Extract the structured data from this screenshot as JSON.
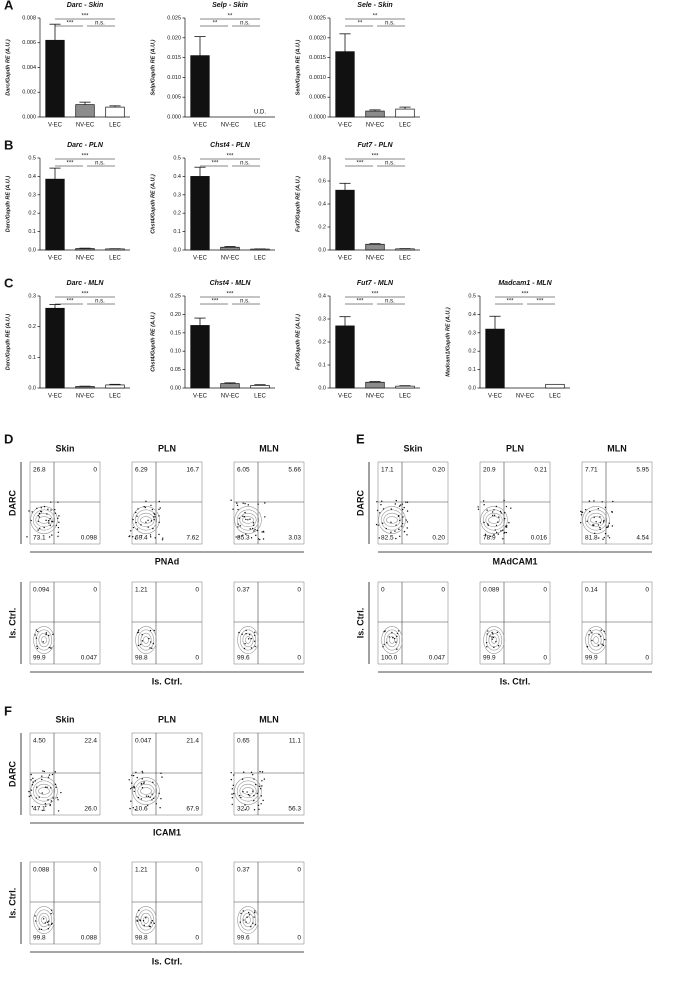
{
  "panels": [
    "A",
    "B",
    "C",
    "D",
    "E",
    "F"
  ],
  "chart_data": [
    {
      "type": "bar",
      "title": "Darc - Skin",
      "ylabel": "Darc/Gapdh RE (A.U.)",
      "categories": [
        "V-EC",
        "NV-EC",
        "LEC"
      ],
      "values": [
        0.0062,
        0.001,
        0.0008
      ],
      "errors": [
        0.0013,
        0.0002,
        0.0001
      ],
      "colors": [
        "#111111",
        "#8c8c8c",
        "#ffffff"
      ],
      "ylim": [
        0,
        0.008
      ],
      "yticks": [
        {
          "value": 0,
          "label": "0.000"
        },
        {
          "value": 0.002,
          "label": "0.002"
        },
        {
          "value": 0.004,
          "label": "0.004"
        },
        {
          "value": 0.006,
          "label": "0.006"
        },
        {
          "value": 0.008,
          "label": "0.008"
        }
      ],
      "significance": [
        "***",
        "n.s.",
        "***"
      ]
    },
    {
      "type": "bar",
      "title": "Selp - Skin",
      "ylabel": "Selp/Gapdh RE (A.U.)",
      "categories": [
        "V-EC",
        "NV-EC",
        "LEC"
      ],
      "values": [
        0.0155,
        null,
        null
      ],
      "errors": [
        0.0048,
        null,
        null
      ],
      "colors": [
        "#111111",
        "#8c8c8c",
        "#ffffff"
      ],
      "ylim": [
        0,
        0.025
      ],
      "yticks": [
        {
          "value": 0,
          "label": "0.000"
        },
        {
          "value": 0.005,
          "label": "0.005"
        },
        {
          "value": 0.01,
          "label": "0.010"
        },
        {
          "value": 0.015,
          "label": "0.015"
        },
        {
          "value": 0.02,
          "label": "0.020"
        },
        {
          "value": 0.025,
          "label": "0.025"
        }
      ],
      "significance": [
        "**",
        "n.s.",
        "**"
      ],
      "annotation": {
        "category": "LEC",
        "text": "U.D."
      }
    },
    {
      "type": "bar",
      "title": "Sele - Skin",
      "ylabel": "Sele/Gapdh RE (A.U.)",
      "categories": [
        "V-EC",
        "NV-EC",
        "LEC"
      ],
      "values": [
        0.00165,
        0.00015,
        0.0002
      ],
      "errors": [
        0.00045,
        3e-05,
        5e-05
      ],
      "colors": [
        "#111111",
        "#8c8c8c",
        "#ffffff"
      ],
      "ylim": [
        0,
        0.0025
      ],
      "yticks": [
        {
          "value": 0,
          "label": "0.0000"
        },
        {
          "value": 0.0005,
          "label": "0.0005"
        },
        {
          "value": 0.001,
          "label": "0.0010"
        },
        {
          "value": 0.0015,
          "label": "0.0015"
        },
        {
          "value": 0.002,
          "label": "0.0020"
        },
        {
          "value": 0.0025,
          "label": "0.0025"
        }
      ],
      "significance": [
        "**",
        "n.s.",
        "**"
      ]
    },
    {
      "type": "bar",
      "title": "Darc - PLN",
      "ylabel": "Darc/Gapdh RE (A.U.)",
      "categories": [
        "V-EC",
        "NV-EC",
        "LEC"
      ],
      "values": [
        0.385,
        0.008,
        0.006
      ],
      "errors": [
        0.06,
        0.002,
        0.001
      ],
      "colors": [
        "#111111",
        "#8c8c8c",
        "#ffffff"
      ],
      "ylim": [
        0,
        0.5
      ],
      "yticks": [
        {
          "value": 0,
          "label": "0.0"
        },
        0.1,
        0.2,
        0.3,
        0.4,
        0.5
      ],
      "significance": [
        "***",
        "n.s.",
        "***"
      ]
    },
    {
      "type": "bar",
      "title": "Chst4 - PLN",
      "ylabel": "Chst4/Gapdh RE (A.U.)",
      "categories": [
        "V-EC",
        "NV-EC",
        "LEC"
      ],
      "values": [
        0.4,
        0.015,
        0.005
      ],
      "errors": [
        0.05,
        0.004,
        0.001
      ],
      "colors": [
        "#111111",
        "#8c8c8c",
        "#ffffff"
      ],
      "ylim": [
        0,
        0.5
      ],
      "yticks": [
        {
          "value": 0,
          "label": "0.0"
        },
        0.1,
        0.2,
        0.3,
        0.4,
        0.5
      ],
      "significance": [
        "***",
        "n.s.",
        "***"
      ]
    },
    {
      "type": "bar",
      "title": "Fut7 - PLN",
      "ylabel": "Fut7/Gapdh RE (A.U.)",
      "categories": [
        "V-EC",
        "NV-EC",
        "LEC"
      ],
      "values": [
        0.52,
        0.05,
        0.01
      ],
      "errors": [
        0.06,
        0.005,
        0.002
      ],
      "colors": [
        "#111111",
        "#8c8c8c",
        "#ffffff"
      ],
      "ylim": [
        0,
        0.8
      ],
      "yticks": [
        {
          "value": 0,
          "label": "0.0"
        },
        0.2,
        0.4,
        0.6,
        0.8
      ],
      "significance": [
        "***",
        "n.s.",
        "***"
      ]
    },
    {
      "type": "bar",
      "title": "Darc - MLN",
      "ylabel": "Darc/Gapdh RE (A.U.)",
      "categories": [
        "V-EC",
        "NV-EC",
        "LEC"
      ],
      "values": [
        0.26,
        0.005,
        0.01
      ],
      "errors": [
        0.012,
        0.001,
        0.002
      ],
      "colors": [
        "#111111",
        "#8c8c8c",
        "#ffffff"
      ],
      "ylim": [
        0,
        0.3
      ],
      "yticks": [
        {
          "value": 0,
          "label": "0.0"
        },
        0.1,
        0.2,
        0.3
      ],
      "significance": [
        "***",
        "n.s.",
        "***"
      ]
    },
    {
      "type": "bar",
      "title": "Chst4 - MLN",
      "ylabel": "Chst4/Gapdh RE (A.U.)",
      "categories": [
        "V-EC",
        "NV-EC",
        "LEC"
      ],
      "values": [
        0.17,
        0.012,
        0.007
      ],
      "errors": [
        0.02,
        0.002,
        0.002
      ],
      "colors": [
        "#111111",
        "#8c8c8c",
        "#ffffff"
      ],
      "ylim": [
        0,
        0.25
      ],
      "yticks": [
        {
          "value": 0,
          "label": "0.00"
        },
        0.05,
        {
          "value": 0.1,
          "label": "0.10"
        },
        0.15,
        {
          "value": 0.2,
          "label": "0.20"
        },
        0.25
      ],
      "significance": [
        "***",
        "n.s.",
        "***"
      ]
    },
    {
      "type": "bar",
      "title": "Fut7 - MLN",
      "ylabel": "Fut7/Gapdh RE (A.U.)",
      "categories": [
        "V-EC",
        "NV-EC",
        "LEC"
      ],
      "values": [
        0.27,
        0.025,
        0.008
      ],
      "errors": [
        0.04,
        0.003,
        0.002
      ],
      "colors": [
        "#111111",
        "#8c8c8c",
        "#ffffff"
      ],
      "ylim": [
        0,
        0.4
      ],
      "yticks": [
        {
          "value": 0,
          "label": "0.0"
        },
        0.1,
        0.2,
        0.3,
        0.4
      ],
      "significance": [
        "***",
        "n.s.",
        "***"
      ]
    },
    {
      "type": "bar",
      "title": "Madcam1 - MLN",
      "ylabel": "Madcam1/Gapdh RE (A.U.)",
      "categories": [
        "V-EC",
        "NV-EC",
        "LEC"
      ],
      "values": [
        0.32,
        null,
        0.02
      ],
      "errors": [
        0.07,
        null,
        null
      ],
      "colors": [
        "#111111",
        "#8c8c8c",
        "#ffffff"
      ],
      "ylim": [
        0,
        0.5
      ],
      "yticks": [
        {
          "value": 0,
          "label": "0.0"
        },
        0.1,
        0.2,
        0.3,
        0.4,
        0.5
      ],
      "significance": [
        "***",
        "***",
        "***"
      ]
    }
  ],
  "flow": [
    {
      "y_label": "DARC",
      "x_label": "PNAd",
      "ctrl_label": "Is. Ctrl.",
      "columns": [
        "Skin",
        "PLN",
        "MLN"
      ],
      "top": [
        [
          "26.8",
          "0",
          "73.1",
          "0.098"
        ],
        [
          "6.29",
          "16.7",
          "69.4",
          "7.62"
        ],
        [
          "6.05",
          "5.66",
          "85.3",
          "3.03"
        ]
      ],
      "bottom": [
        [
          "0.094",
          "0",
          "99.9",
          "0.047"
        ],
        [
          "1.21",
          "0",
          "98.8",
          "0"
        ],
        [
          "0.37",
          "0",
          "99.6",
          "0"
        ]
      ]
    },
    {
      "y_label": "DARC",
      "x_label": "MAdCAM1",
      "ctrl_label": "Is. Ctrl.",
      "columns": [
        "Skin",
        "PLN",
        "MLN"
      ],
      "top": [
        [
          "17.1",
          "0.20",
          "82.5",
          "0.20"
        ],
        [
          "20.9",
          "0.21",
          "78.9",
          "0.016"
        ],
        [
          "7.71",
          "5.95",
          "81.8",
          "4.54"
        ]
      ],
      "bottom": [
        [
          "0",
          "0",
          "100.0",
          "0.047"
        ],
        [
          "0.089",
          "0",
          "99.9",
          "0"
        ],
        [
          "0.14",
          "0",
          "99.9",
          "0"
        ]
      ]
    },
    {
      "y_label": "DARC",
      "x_label": "ICAM1",
      "ctrl_label": "Is. Ctrl.",
      "columns": [
        "Skin",
        "PLN",
        "MLN"
      ],
      "top": [
        [
          "4.50",
          "22.4",
          "47.1",
          "26.0"
        ],
        [
          "0.047",
          "21.4",
          "10.6",
          "67.9"
        ],
        [
          "0.65",
          "11.1",
          "32.0",
          "56.3"
        ]
      ],
      "bottom": [
        [
          "0.088",
          "0",
          "99.8",
          "0.088"
        ],
        [
          "1.21",
          "0",
          "98.8",
          "0"
        ],
        [
          "0.37",
          "0",
          "99.6",
          "0"
        ]
      ]
    }
  ]
}
